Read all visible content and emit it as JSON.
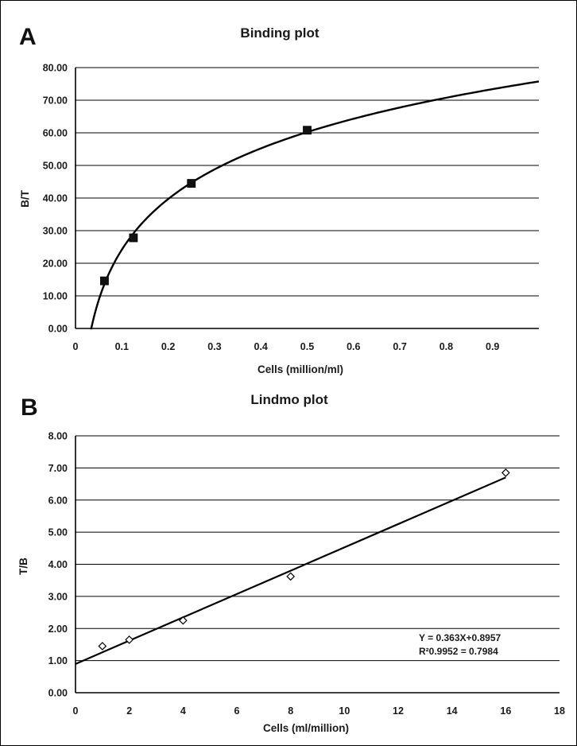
{
  "chart_data": [
    {
      "panel": "A",
      "type": "scatter",
      "title": "Binding plot",
      "xlabel": "Cells (million/ml)",
      "ylabel": "B/T",
      "xlim": [
        0,
        1.0
      ],
      "ylim": [
        0,
        80
      ],
      "xticks": [
        "0",
        "0.1",
        "0.2",
        "0.3",
        "0.4",
        "0.5",
        "0.6",
        "0.7",
        "0.8",
        "0.9"
      ],
      "yticks": [
        "0.00",
        "10.00",
        "20.00",
        "30.00",
        "40.00",
        "50.00",
        "60.00",
        "70.00",
        "80.00"
      ],
      "grid": "horizontal",
      "marker": "filled-square",
      "x": [
        0.0625,
        0.125,
        0.25,
        0.5
      ],
      "y": [
        14.6,
        27.8,
        44.5,
        60.8
      ],
      "fit": {
        "type": "logarithmic",
        "curve_from_x": 0.032
      }
    },
    {
      "panel": "B",
      "type": "scatter",
      "title": "Lindmo plot",
      "xlabel": "Cells (ml/million)",
      "ylabel": "T/B",
      "xlim": [
        0,
        18
      ],
      "ylim": [
        0,
        8
      ],
      "xticks": [
        "0",
        "2",
        "4",
        "6",
        "8",
        "10",
        "12",
        "14",
        "16",
        "18"
      ],
      "yticks": [
        "0.00",
        "1.00",
        "2.00",
        "3.00",
        "4.00",
        "5.00",
        "6.00",
        "7.00",
        "8.00"
      ],
      "grid": "horizontal",
      "marker": "open-diamond",
      "x": [
        1,
        2,
        4,
        8,
        16
      ],
      "y": [
        1.45,
        1.65,
        2.25,
        3.62,
        6.85
      ],
      "fit": {
        "type": "linear",
        "slope": 0.363,
        "intercept": 0.8957
      },
      "annotation": [
        "Y = 0.363X+0.8957",
        "R²0.9952 = 0.7984"
      ]
    }
  ]
}
